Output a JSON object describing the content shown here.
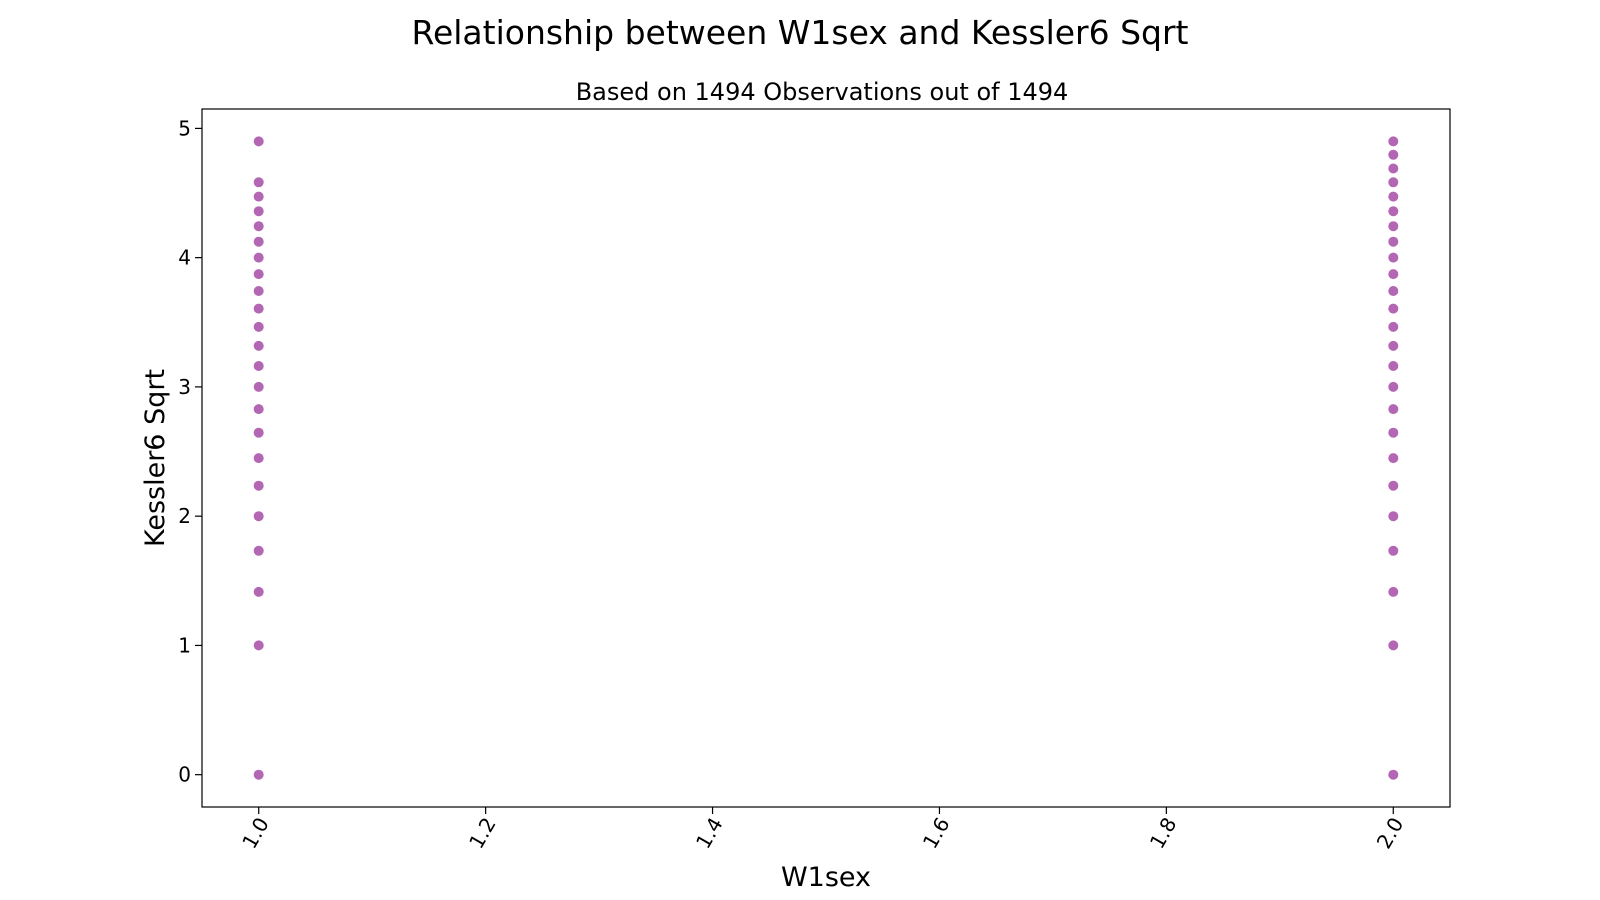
{
  "chart_data": {
    "type": "scatter",
    "title": "Relationship between W1sex and Kessler6 Sqrt",
    "subtitle": "Based on 1494 Observations out of 1494",
    "xlabel": "W1sex",
    "ylabel": "Kessler6 Sqrt",
    "xlim": [
      0.95,
      2.05
    ],
    "ylim": [
      -0.25,
      5.15
    ],
    "x_ticks": [
      1.0,
      1.2,
      1.4,
      1.6,
      1.8,
      2.0
    ],
    "x_tick_labels": [
      "1.0",
      "1.2",
      "1.4",
      "1.6",
      "1.8",
      "2.0"
    ],
    "y_ticks": [
      0,
      1,
      2,
      3,
      4,
      5
    ],
    "y_tick_labels": [
      "0",
      "1",
      "2",
      "3",
      "4",
      "5"
    ],
    "grid": false,
    "marker_color": "#800080",
    "series": [
      {
        "points": [
          [
            1.0,
            0.0
          ],
          [
            1.0,
            1.0
          ],
          [
            1.0,
            1.414
          ],
          [
            1.0,
            1.732
          ],
          [
            1.0,
            2.0
          ],
          [
            1.0,
            2.236
          ],
          [
            1.0,
            2.449
          ],
          [
            1.0,
            2.646
          ],
          [
            1.0,
            2.828
          ],
          [
            1.0,
            3.0
          ],
          [
            1.0,
            3.162
          ],
          [
            1.0,
            3.317
          ],
          [
            1.0,
            3.464
          ],
          [
            1.0,
            3.606
          ],
          [
            1.0,
            3.742
          ],
          [
            1.0,
            3.873
          ],
          [
            1.0,
            4.0
          ],
          [
            1.0,
            4.123
          ],
          [
            1.0,
            4.243
          ],
          [
            1.0,
            4.359
          ],
          [
            1.0,
            4.472
          ],
          [
            1.0,
            4.583
          ],
          [
            1.0,
            4.899
          ],
          [
            2.0,
            0.0
          ],
          [
            2.0,
            1.0
          ],
          [
            2.0,
            1.414
          ],
          [
            2.0,
            1.732
          ],
          [
            2.0,
            2.0
          ],
          [
            2.0,
            2.236
          ],
          [
            2.0,
            2.449
          ],
          [
            2.0,
            2.646
          ],
          [
            2.0,
            2.828
          ],
          [
            2.0,
            3.0
          ],
          [
            2.0,
            3.162
          ],
          [
            2.0,
            3.317
          ],
          [
            2.0,
            3.464
          ],
          [
            2.0,
            3.606
          ],
          [
            2.0,
            3.742
          ],
          [
            2.0,
            3.873
          ],
          [
            2.0,
            4.0
          ],
          [
            2.0,
            4.123
          ],
          [
            2.0,
            4.243
          ],
          [
            2.0,
            4.359
          ],
          [
            2.0,
            4.472
          ],
          [
            2.0,
            4.583
          ],
          [
            2.0,
            4.69
          ],
          [
            2.0,
            4.796
          ],
          [
            2.0,
            4.899
          ]
        ]
      }
    ]
  }
}
